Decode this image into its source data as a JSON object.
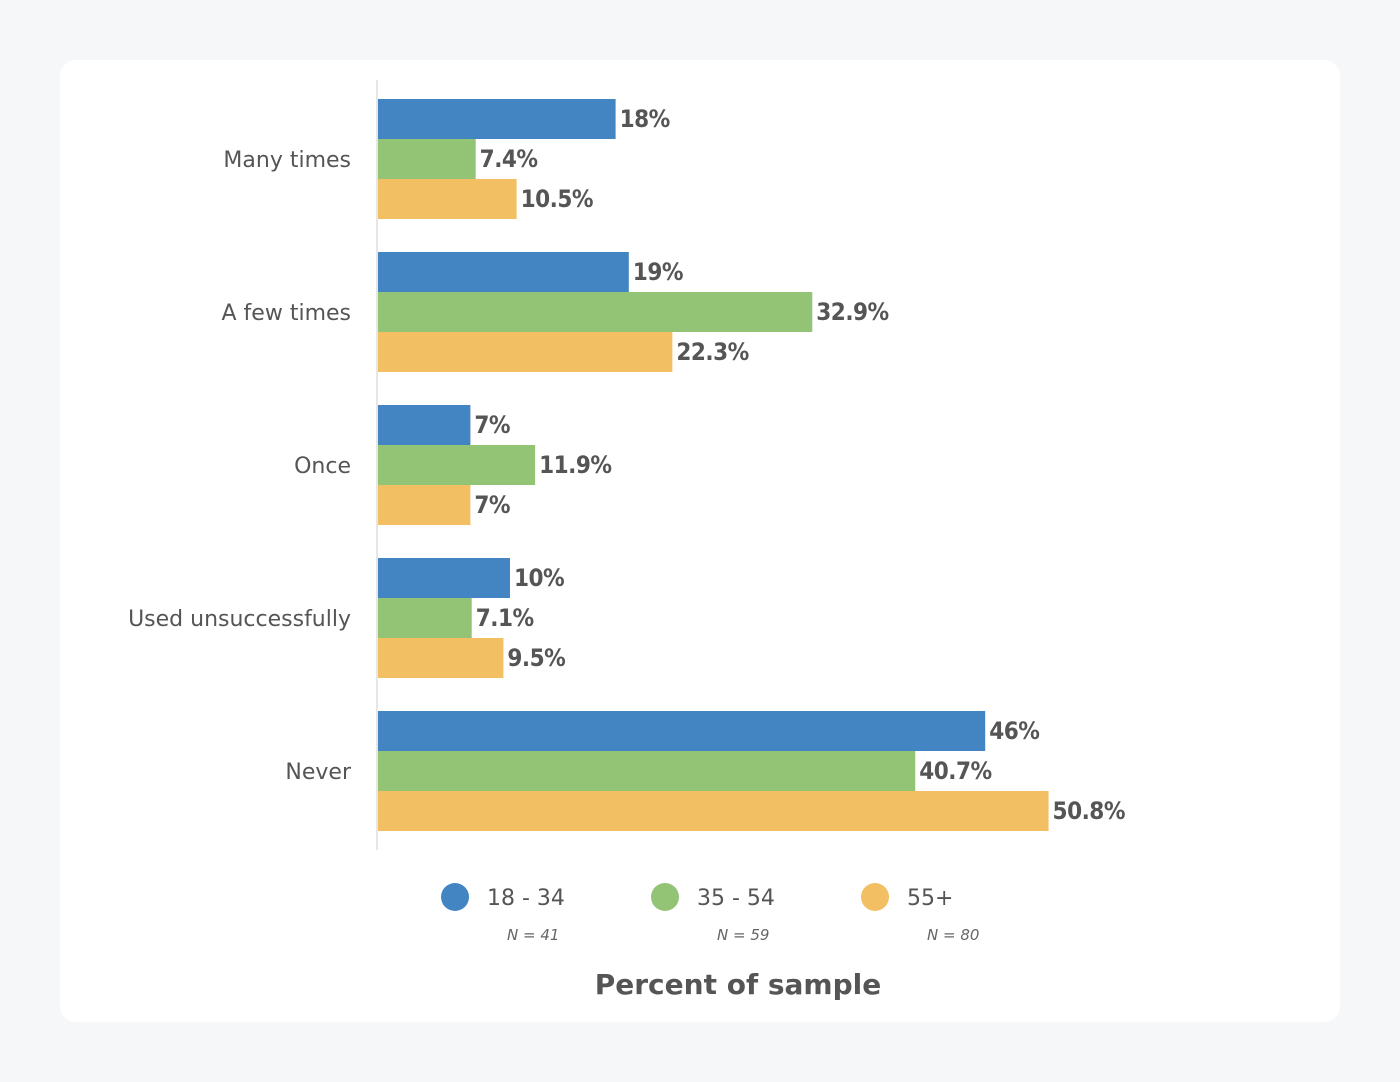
{
  "chart_data": {
    "type": "bar",
    "orientation": "horizontal",
    "categories": [
      "Many times",
      "A few times",
      "Once",
      "Used unsuccessfully",
      "Never"
    ],
    "series": [
      {
        "name": "18 - 34",
        "n_label": "N = 41",
        "color": "#4285c2",
        "values": [
          18,
          19,
          7,
          10,
          46
        ],
        "labels": [
          "18%",
          "19%",
          "7%",
          "10%",
          "46%"
        ]
      },
      {
        "name": "35 - 54",
        "n_label": "N = 59",
        "color": "#93c374",
        "values": [
          7.4,
          32.9,
          11.9,
          7.1,
          40.7
        ],
        "labels": [
          "7.4%",
          "32.9%",
          "11.9%",
          "7.1%",
          "40.7%"
        ]
      },
      {
        "name": "55+",
        "n_label": "N = 80",
        "color": "#f2bf62",
        "values": [
          10.5,
          22.3,
          7,
          9.5,
          50.8
        ],
        "labels": [
          "10.5%",
          "22.3%",
          "7%",
          "9.5%",
          "50.8%"
        ]
      }
    ],
    "xlabel": "Percent of sample",
    "xlim": [
      0,
      60
    ],
    "grid": false,
    "legend": "bottom"
  }
}
